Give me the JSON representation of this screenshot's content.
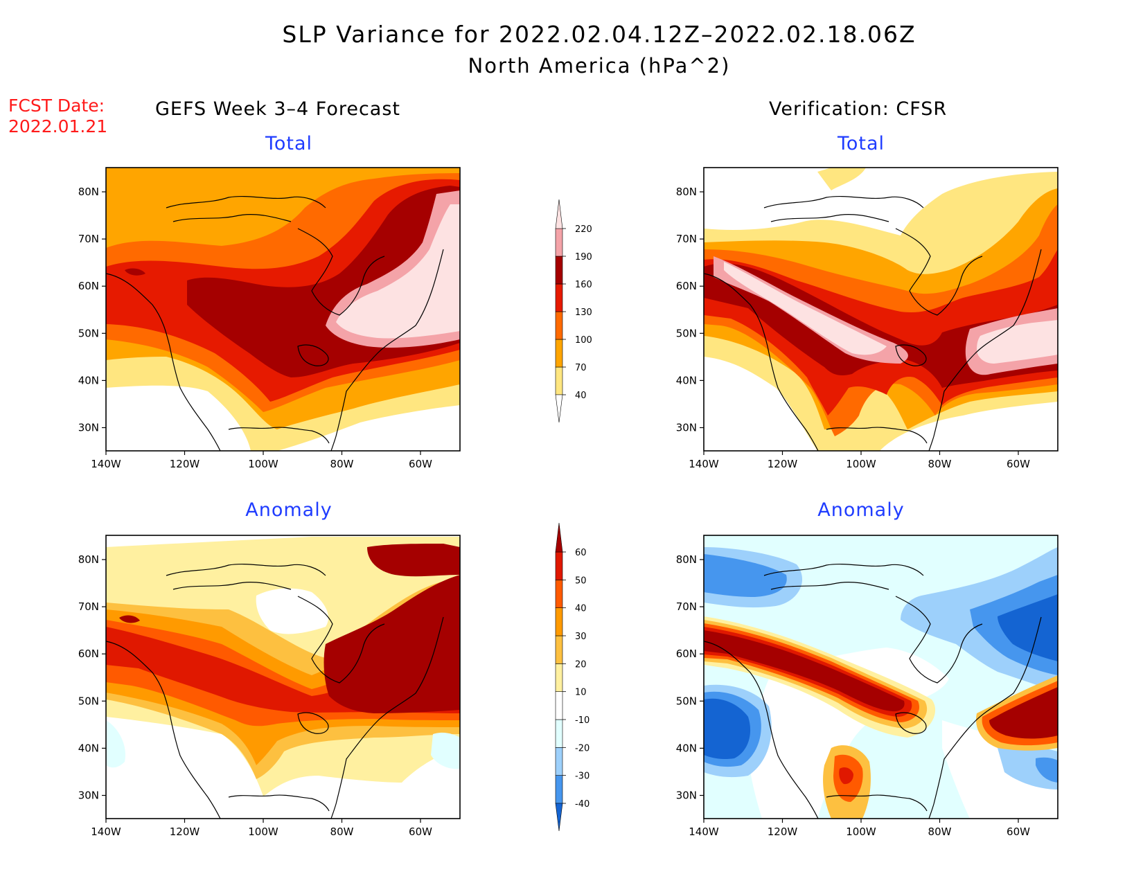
{
  "header": {
    "title": "SLP Variance for 2022.02.04.12Z–2022.02.18.06Z",
    "subtitle": "North America (hPa^2)",
    "fcst_label": "FCST Date:",
    "fcst_date": "2022.01.21"
  },
  "columns": {
    "left": "GEFS Week 3–4 Forecast",
    "right": "Verification: CFSR"
  },
  "panels": {
    "top_left": "Total",
    "top_right": "Total",
    "bottom_left": "Anomaly",
    "bottom_right": "Anomaly"
  },
  "axes": {
    "lon_ticks": [
      "140W",
      "120W",
      "100W",
      "80W",
      "60W"
    ],
    "lat_ticks": [
      "80N",
      "70N",
      "60N",
      "50N",
      "40N",
      "30N"
    ]
  },
  "colorbars": {
    "total": {
      "labels": [
        "40",
        "70",
        "100",
        "130",
        "160",
        "190",
        "220"
      ],
      "colors": [
        "#ffe680",
        "#ffa500",
        "#ff6a00",
        "#e61a00",
        "#a50000",
        "#f4a3a8",
        "#fde2e2"
      ]
    },
    "anomaly": {
      "labels": [
        "-40",
        "-30",
        "-20",
        "-10",
        "10",
        "20",
        "30",
        "40",
        "50",
        "60"
      ],
      "colors": [
        "#1464d2",
        "#4696ee",
        "#9dd0fb",
        "#e1ffff",
        "#ffffff",
        "#fff0a0",
        "#fdc040",
        "#ff9a00",
        "#ff5a00",
        "#e01800",
        "#a50000"
      ]
    }
  }
}
